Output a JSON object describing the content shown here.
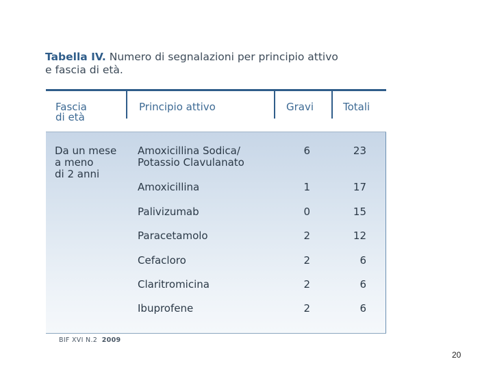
{
  "caption": {
    "label": "Tabella IV.",
    "line1_rest": "Numero di segnalazioni per principio attivo",
    "line2": "e fascia di età."
  },
  "table": {
    "headers": {
      "fascia_line1": "Fascia",
      "fascia_line2": "di età",
      "principio": "Principio attivo",
      "gravi": "Gravi",
      "totali": "Totali"
    },
    "age_group": [
      "Da un mese",
      "a meno",
      "di 2 anni"
    ],
    "rows": [
      {
        "principio": [
          "Amoxicillina Sodica/",
          "Potassio Clavulanato"
        ],
        "gravi": "6",
        "totali": "23"
      },
      {
        "principio": [
          "Amoxicillina"
        ],
        "gravi": "1",
        "totali": "17"
      },
      {
        "principio": [
          "Palivizumab"
        ],
        "gravi": "0",
        "totali": "15"
      },
      {
        "principio": [
          "Paracetamolo"
        ],
        "gravi": "2",
        "totali": "12"
      },
      {
        "principio": [
          "Cefacloro"
        ],
        "gravi": "2",
        "totali": "6"
      },
      {
        "principio": [
          "Claritromicina"
        ],
        "gravi": "2",
        "totali": "6"
      },
      {
        "principio": [
          "Ibuprofene"
        ],
        "gravi": "2",
        "totali": "6"
      }
    ]
  },
  "footer": {
    "source": "BIF XVI N.2",
    "year": "2009"
  },
  "page_number": "20"
}
